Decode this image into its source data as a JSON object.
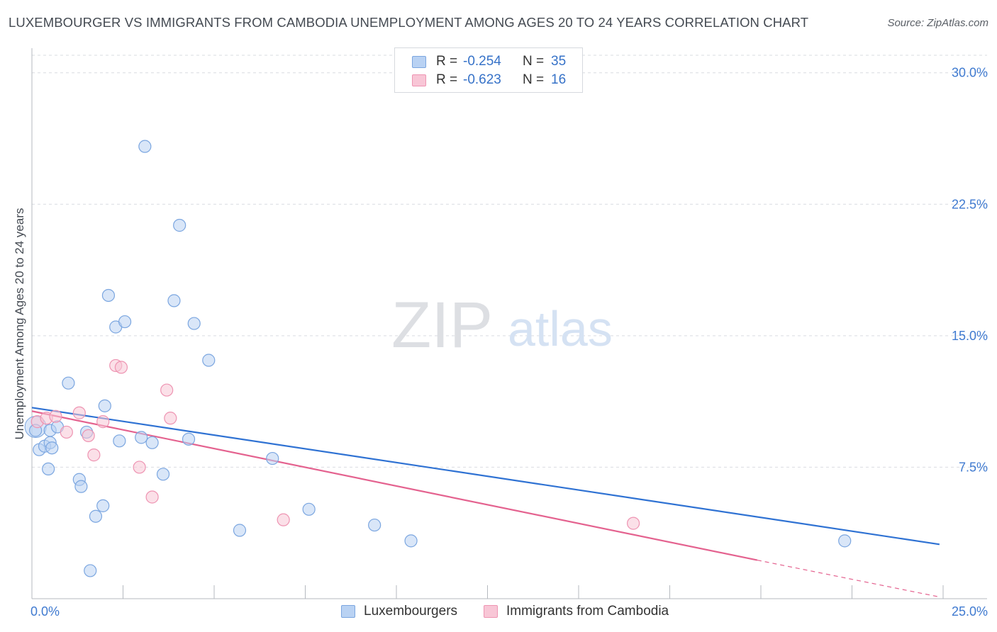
{
  "header": {
    "title": "LUXEMBOURGER VS IMMIGRANTS FROM CAMBODIA UNEMPLOYMENT AMONG AGES 20 TO 24 YEARS CORRELATION CHART",
    "source": "Source: ZipAtlas.com"
  },
  "watermark": {
    "zip": "ZIP",
    "atlas": "atlas"
  },
  "stats": [
    {
      "r_label": "R =",
      "r_value": "-0.254",
      "n_label": "N =",
      "n_value": "35"
    },
    {
      "r_label": "R =",
      "r_value": "-0.623",
      "n_label": "N =",
      "n_value": "16"
    }
  ],
  "colors": {
    "blue_fill": "#b9d2f3",
    "blue_stroke": "#7ba6e0",
    "blue_line": "#2f72d3",
    "pink_fill": "#f8c6d6",
    "pink_stroke": "#ee94b2",
    "pink_line": "#e4628f",
    "tick_label": "#3f7ad0",
    "grid": "#d9dce1"
  },
  "chart_data": {
    "type": "scatter",
    "title": "LUXEMBOURGER VS IMMIGRANTS FROM CAMBODIA UNEMPLOYMENT AMONG AGES 20 TO 24 YEARS CORRELATION CHART",
    "xlabel": "",
    "ylabel": "Unemployment Among Ages 20 to 24 years",
    "xlim": [
      0,
      25
    ],
    "ylim": [
      0,
      31
    ],
    "x_tick_labels": [
      "0.0%",
      "25.0%"
    ],
    "y_ticks": [
      7.5,
      15.0,
      22.5,
      30.0
    ],
    "y_tick_labels": [
      "7.5%",
      "15.0%",
      "22.5%",
      "30.0%"
    ],
    "grid": true,
    "legend_position": "bottom",
    "series": [
      {
        "name": "Luxembourgers",
        "color": "#7ba6e0",
        "points": [
          [
            0.1,
            9.6
          ],
          [
            0.2,
            8.5
          ],
          [
            0.35,
            8.7
          ],
          [
            0.45,
            7.4
          ],
          [
            0.5,
            9.6
          ],
          [
            0.5,
            8.9
          ],
          [
            0.55,
            8.6
          ],
          [
            0.7,
            9.8
          ],
          [
            1.0,
            12.3
          ],
          [
            1.3,
            6.8
          ],
          [
            1.35,
            6.4
          ],
          [
            1.5,
            9.5
          ],
          [
            1.6,
            1.6
          ],
          [
            1.75,
            4.7
          ],
          [
            1.95,
            5.3
          ],
          [
            2.0,
            11.0
          ],
          [
            2.1,
            17.3
          ],
          [
            2.3,
            15.5
          ],
          [
            2.4,
            9.0
          ],
          [
            2.55,
            15.8
          ],
          [
            3.0,
            9.2
          ],
          [
            3.1,
            25.8
          ],
          [
            3.3,
            8.9
          ],
          [
            3.6,
            7.1
          ],
          [
            3.9,
            17.0
          ],
          [
            4.05,
            21.3
          ],
          [
            4.3,
            9.1
          ],
          [
            4.45,
            15.7
          ],
          [
            4.85,
            13.6
          ],
          [
            5.7,
            3.9
          ],
          [
            6.6,
            8.0
          ],
          [
            7.6,
            5.1
          ],
          [
            9.4,
            4.2
          ],
          [
            10.4,
            3.3
          ],
          [
            22.3,
            3.3
          ]
        ],
        "trend": {
          "x": [
            0,
            24.9
          ],
          "y": [
            10.9,
            3.1
          ]
        }
      },
      {
        "name": "Immigrants from Cambodia",
        "color": "#ee94b2",
        "points": [
          [
            0.15,
            10.1
          ],
          [
            0.4,
            10.3
          ],
          [
            0.65,
            10.4
          ],
          [
            0.95,
            9.5
          ],
          [
            1.3,
            10.6
          ],
          [
            1.55,
            9.3
          ],
          [
            1.7,
            8.2
          ],
          [
            1.95,
            10.1
          ],
          [
            2.3,
            13.3
          ],
          [
            2.45,
            13.2
          ],
          [
            2.95,
            7.5
          ],
          [
            3.3,
            5.8
          ],
          [
            3.7,
            11.9
          ],
          [
            3.8,
            10.3
          ],
          [
            6.9,
            4.5
          ],
          [
            16.5,
            4.3
          ]
        ],
        "trend": {
          "x": [
            0,
            19.9
          ],
          "y": [
            10.7,
            2.2
          ]
        },
        "trend_extrapolated": {
          "x": [
            19.9,
            24.9
          ],
          "y": [
            2.2,
            0.1
          ]
        }
      }
    ]
  }
}
